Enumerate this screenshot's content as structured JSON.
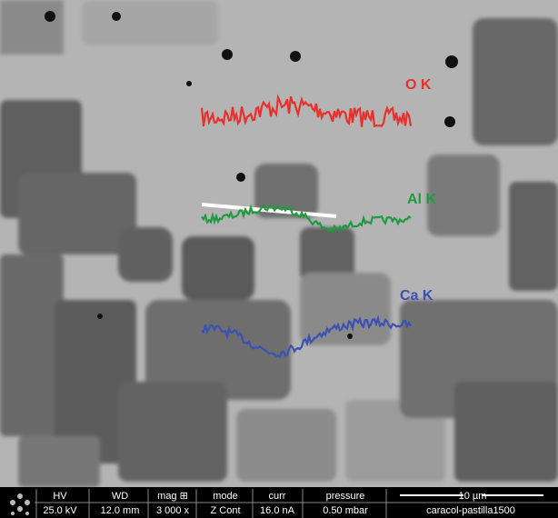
{
  "annotations": {
    "labels": [
      "O K",
      "Al K",
      "Ca K"
    ]
  },
  "info_bar": {
    "columns": [
      {
        "header": "HV",
        "value": "25.0 kV"
      },
      {
        "header": "WD",
        "value": "12.0 mm"
      },
      {
        "header": "mag ⊞",
        "value": "3 000 x"
      },
      {
        "header": "mode",
        "value": "Z Cont"
      },
      {
        "header": "curr",
        "value": "16.0 nA"
      },
      {
        "header": "pressure",
        "value": "0.50 mbar"
      }
    ],
    "scale_bar": "10 µm",
    "sample": "caracol-pastilla1500"
  }
}
